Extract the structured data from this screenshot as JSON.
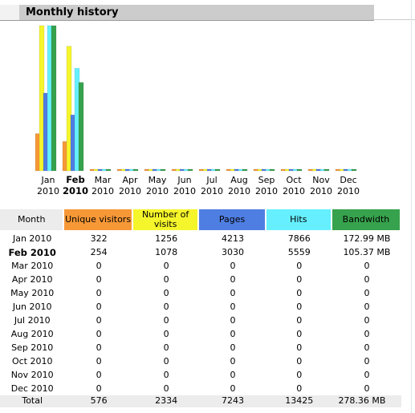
{
  "page": {
    "section_title": "Monthly history"
  },
  "colors": {
    "visitors": "#f79837",
    "visits": "#f5f52c",
    "pages": "#4f7ee2",
    "hits": "#66f0ff",
    "bandwidth": "#37a24d"
  },
  "chart_data": {
    "type": "bar",
    "title": "Monthly history",
    "categories": [
      "Jan 2010",
      "Feb 2010",
      "Mar 2010",
      "Apr 2010",
      "May 2010",
      "Jun 2010",
      "Jul 2010",
      "Aug 2010",
      "Sep 2010",
      "Oct 2010",
      "Nov 2010",
      "Dec 2010"
    ],
    "month_labels": [
      "Jan",
      "Feb",
      "Mar",
      "Apr",
      "May",
      "Jun",
      "Jul",
      "Aug",
      "Sep",
      "Oct",
      "Nov",
      "Dec"
    ],
    "year_labels": [
      "2010",
      "2010",
      "2010",
      "2010",
      "2010",
      "2010",
      "2010",
      "2010",
      "2010",
      "2010",
      "2010",
      "2010"
    ],
    "current_month_index": 1,
    "series": [
      {
        "key": "visitors",
        "values": [
          322,
          254,
          0,
          0,
          0,
          0,
          0,
          0,
          0,
          0,
          0,
          0
        ]
      },
      {
        "key": "visits",
        "values": [
          1256,
          1078,
          0,
          0,
          0,
          0,
          0,
          0,
          0,
          0,
          0,
          0
        ]
      },
      {
        "key": "pages",
        "values": [
          4213,
          3030,
          0,
          0,
          0,
          0,
          0,
          0,
          0,
          0,
          0,
          0
        ]
      },
      {
        "key": "hits",
        "values": [
          7866,
          5559,
          0,
          0,
          0,
          0,
          0,
          0,
          0,
          0,
          0,
          0
        ]
      },
      {
        "key": "bandwidth",
        "values": [
          172.99,
          105.37,
          0,
          0,
          0,
          0,
          0,
          0,
          0,
          0,
          0,
          0
        ]
      }
    ]
  },
  "table": {
    "headers": {
      "month": "Month",
      "visitors": "Unique visitors",
      "visits": "Number of visits",
      "pages": "Pages",
      "hits": "Hits",
      "bandwidth": "Bandwidth"
    },
    "rows": [
      {
        "month": "Jan 2010",
        "visitors": "322",
        "visits": "1256",
        "pages": "4213",
        "hits": "7866",
        "bandwidth": "172.99 MB"
      },
      {
        "month": "Feb 2010",
        "visitors": "254",
        "visits": "1078",
        "pages": "3030",
        "hits": "5559",
        "bandwidth": "105.37 MB"
      },
      {
        "month": "Mar 2010",
        "visitors": "0",
        "visits": "0",
        "pages": "0",
        "hits": "0",
        "bandwidth": "0"
      },
      {
        "month": "Apr 2010",
        "visitors": "0",
        "visits": "0",
        "pages": "0",
        "hits": "0",
        "bandwidth": "0"
      },
      {
        "month": "May 2010",
        "visitors": "0",
        "visits": "0",
        "pages": "0",
        "hits": "0",
        "bandwidth": "0"
      },
      {
        "month": "Jun 2010",
        "visitors": "0",
        "visits": "0",
        "pages": "0",
        "hits": "0",
        "bandwidth": "0"
      },
      {
        "month": "Jul 2010",
        "visitors": "0",
        "visits": "0",
        "pages": "0",
        "hits": "0",
        "bandwidth": "0"
      },
      {
        "month": "Aug 2010",
        "visitors": "0",
        "visits": "0",
        "pages": "0",
        "hits": "0",
        "bandwidth": "0"
      },
      {
        "month": "Sep 2010",
        "visitors": "0",
        "visits": "0",
        "pages": "0",
        "hits": "0",
        "bandwidth": "0"
      },
      {
        "month": "Oct 2010",
        "visitors": "0",
        "visits": "0",
        "pages": "0",
        "hits": "0",
        "bandwidth": "0"
      },
      {
        "month": "Nov 2010",
        "visitors": "0",
        "visits": "0",
        "pages": "0",
        "hits": "0",
        "bandwidth": "0"
      },
      {
        "month": "Dec 2010",
        "visitors": "0",
        "visits": "0",
        "pages": "0",
        "hits": "0",
        "bandwidth": "0"
      }
    ],
    "total": {
      "month": "Total",
      "visitors": "576",
      "visits": "2334",
      "pages": "7243",
      "hits": "13425",
      "bandwidth": "278.36 MB"
    }
  }
}
